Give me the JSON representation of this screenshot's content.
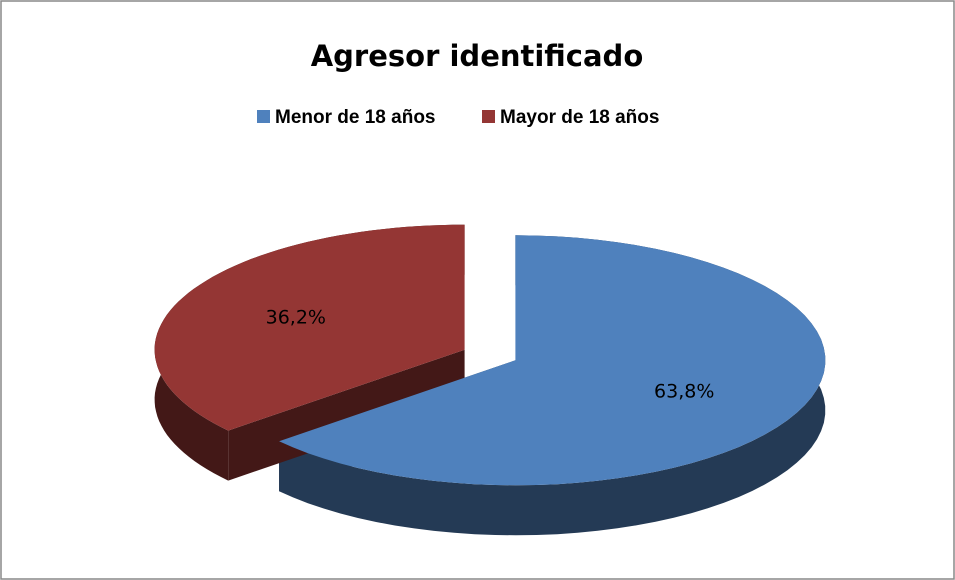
{
  "chart_data": {
    "type": "pie",
    "title": "Agresor identificado",
    "categories": [
      "Menor de 18 años",
      "Mayor de 18 años"
    ],
    "values": [
      63.8,
      36.2
    ],
    "value_labels": [
      "63,8%",
      "36,2%"
    ],
    "colors": [
      "#4f81bd",
      "#943634"
    ],
    "legend": "top"
  }
}
